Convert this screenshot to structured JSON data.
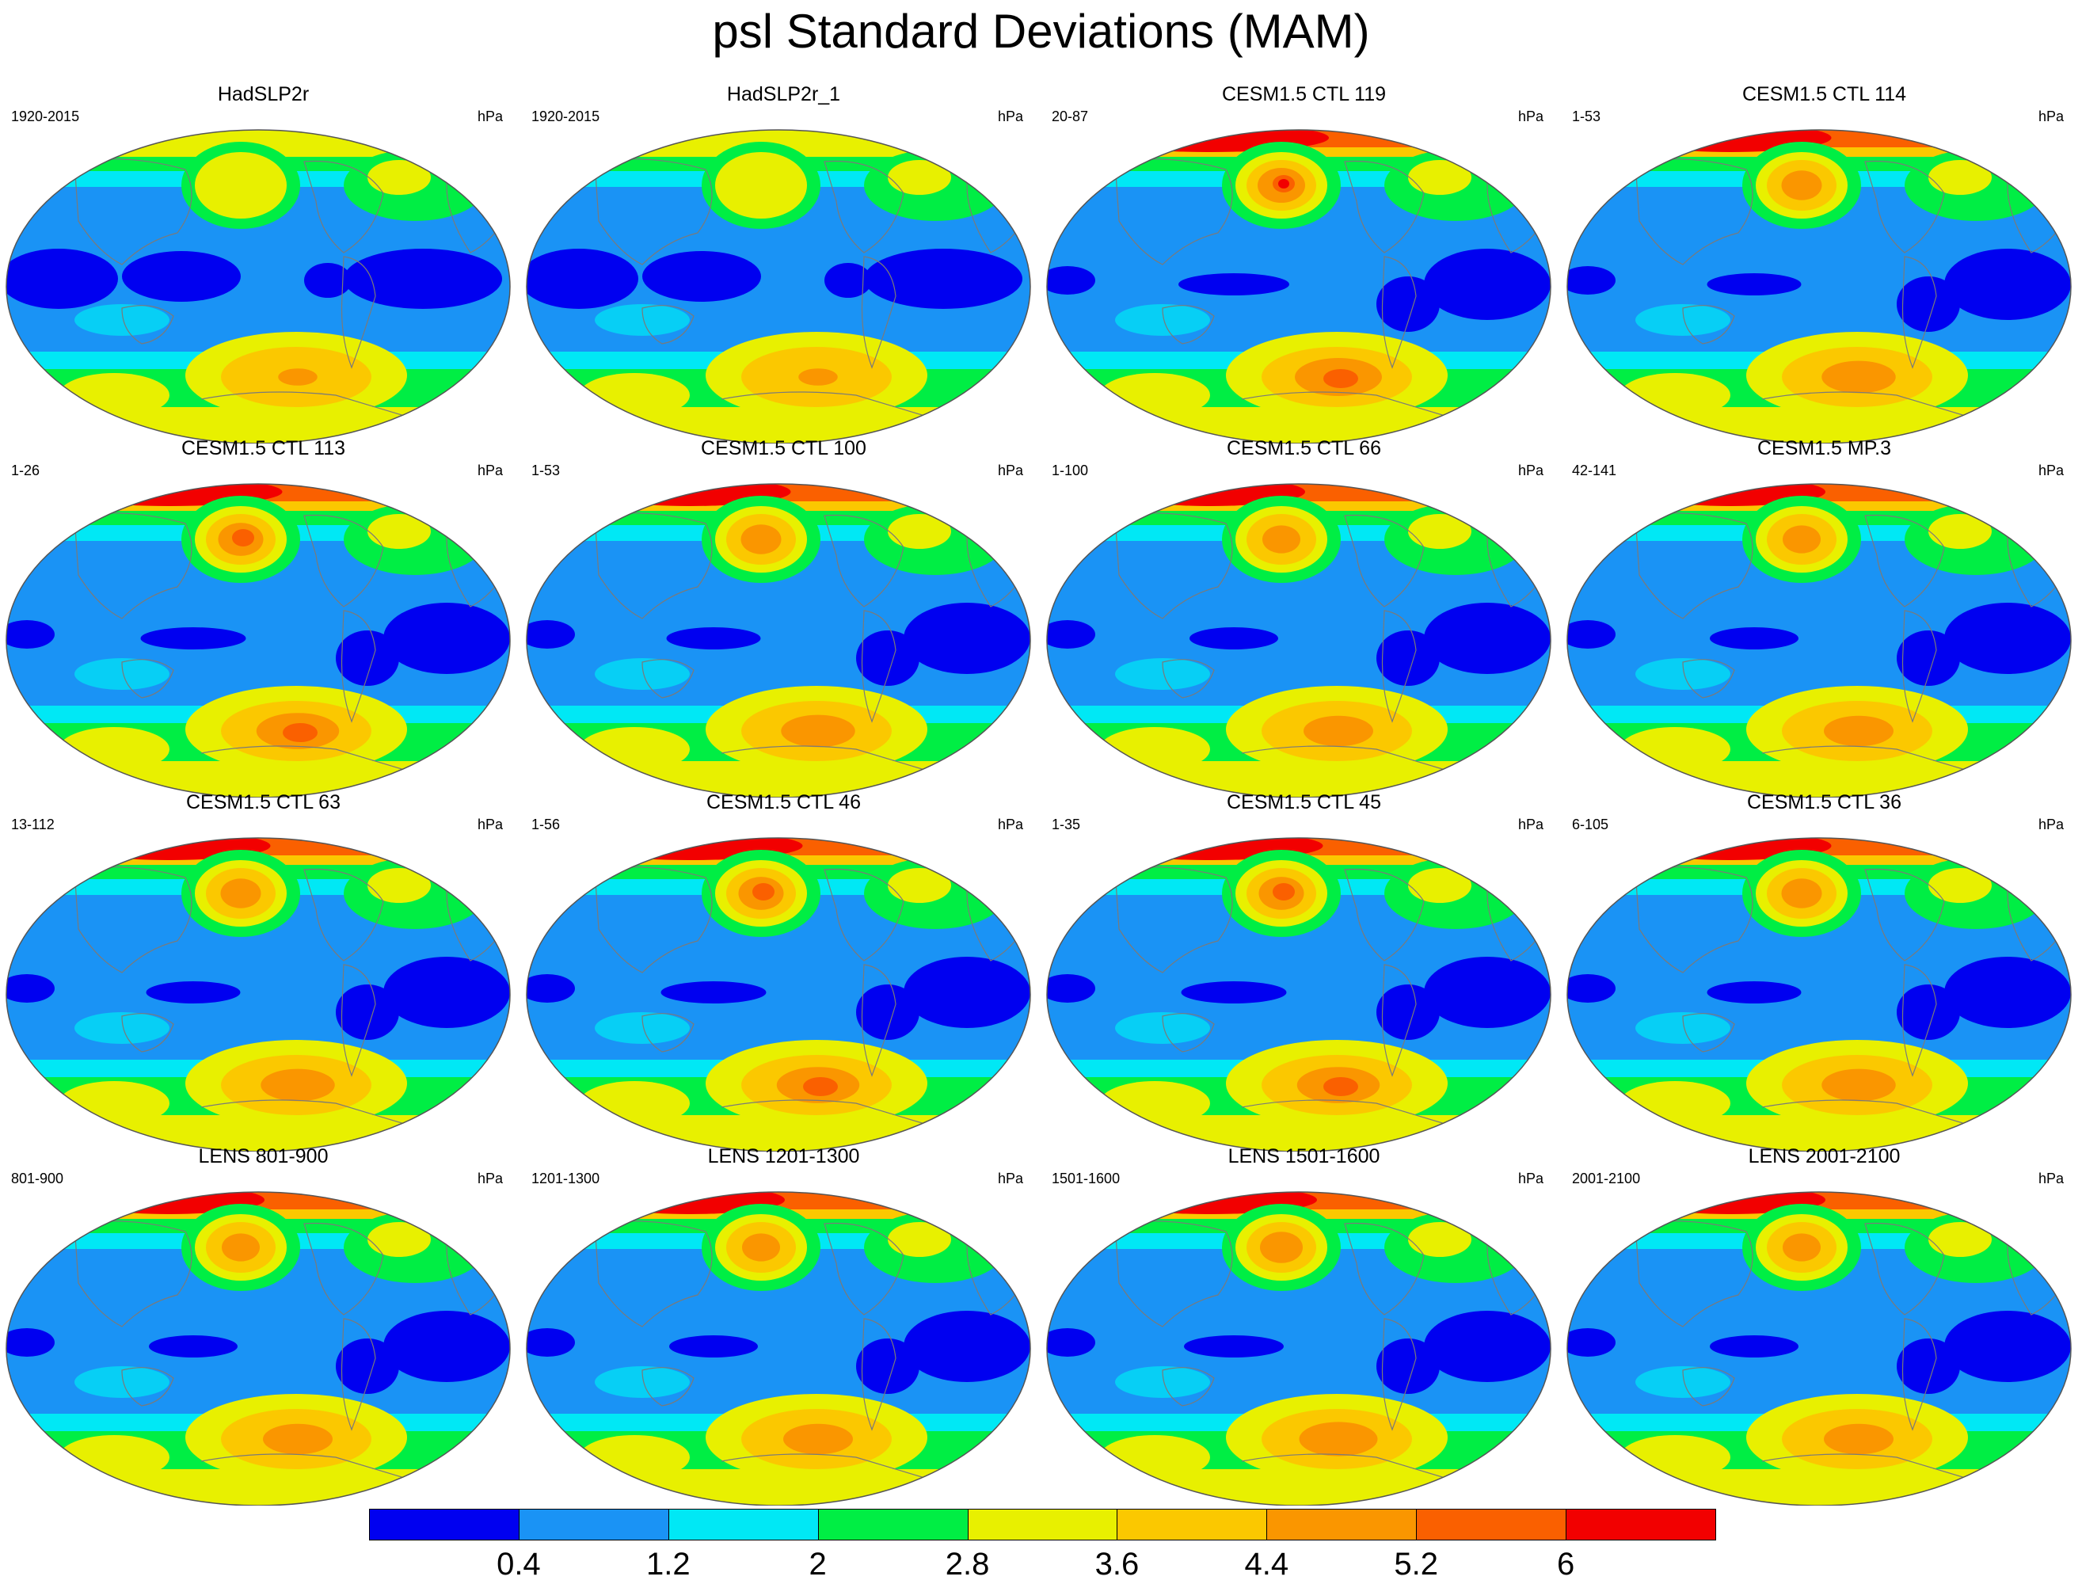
{
  "title": "psl Standard Deviations (MAM)",
  "unit": "hPa",
  "panels": [
    {
      "title": "HadSLP2r",
      "years": "1920-2015",
      "style": "obs",
      "intensity": 0.45
    },
    {
      "title": "HadSLP2r_1",
      "years": "1920-2015",
      "style": "obs",
      "intensity": 0.45
    },
    {
      "title": "CESM1.5 CTL 119",
      "years": "20-87",
      "style": "model",
      "intensity": 1.0
    },
    {
      "title": "CESM1.5 CTL 114",
      "years": "1-53",
      "style": "model",
      "intensity": 0.85
    },
    {
      "title": "CESM1.5 CTL 113",
      "years": "1-26",
      "style": "model",
      "intensity": 0.95
    },
    {
      "title": "CESM1.5 CTL 100",
      "years": "1-53",
      "style": "model",
      "intensity": 0.85
    },
    {
      "title": "CESM1.5 CTL 66",
      "years": "1-100",
      "style": "model",
      "intensity": 0.8
    },
    {
      "title": "CESM1.5 MP.3",
      "years": "42-141",
      "style": "model",
      "intensity": 0.8
    },
    {
      "title": "CESM1.5 CTL 63",
      "years": "13-112",
      "style": "model",
      "intensity": 0.85
    },
    {
      "title": "CESM1.5 CTL 46",
      "years": "1-56",
      "style": "model",
      "intensity": 0.95
    },
    {
      "title": "CESM1.5 CTL 45",
      "years": "1-35",
      "style": "model",
      "intensity": 0.95
    },
    {
      "title": "CESM1.5 CTL 36",
      "years": "6-105",
      "style": "model",
      "intensity": 0.85
    },
    {
      "title": "LENS 801-900",
      "years": "801-900",
      "style": "model",
      "intensity": 0.8
    },
    {
      "title": "LENS 1201-1300",
      "years": "1201-1300",
      "style": "model",
      "intensity": 0.8
    },
    {
      "title": "LENS 1501-1600",
      "years": "1501-1600",
      "style": "model",
      "intensity": 0.9
    },
    {
      "title": "LENS 2001-2100",
      "years": "2001-2100",
      "style": "model",
      "intensity": 0.8
    }
  ],
  "colorbar": {
    "colors": [
      "#0000f0",
      "#1a93f5",
      "#00e8f5",
      "#00ee44",
      "#e8f000",
      "#fbc800",
      "#fa9600",
      "#fa6000",
      "#f20000"
    ],
    "labels": [
      "0.4",
      "1.2",
      "2",
      "2.8",
      "3.6",
      "4.4",
      "5.2",
      "6"
    ],
    "levels": [
      0.4,
      1.2,
      2,
      2.8,
      3.6,
      4.4,
      5.2,
      6
    ]
  }
}
